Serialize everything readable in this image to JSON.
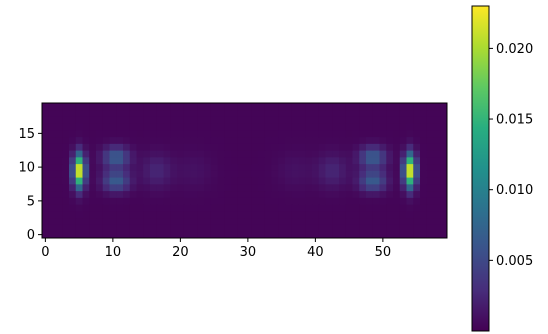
{
  "chart_data": {
    "type": "heatmap",
    "title": "",
    "xlabel": "",
    "ylabel": "",
    "colormap": "viridis",
    "origin": "lower",
    "grid": false,
    "shape": {
      "columns": 60,
      "rows": 20
    },
    "xlim": [
      -0.5,
      59.5
    ],
    "ylim": [
      -0.5,
      19.5
    ],
    "x_ticks": [
      0,
      10,
      20,
      30,
      40,
      50
    ],
    "y_ticks": [
      0,
      5,
      10,
      15
    ],
    "colorbar": {
      "range": [
        0.0,
        0.023
      ],
      "ticks": [
        0.005,
        0.01,
        0.015,
        0.02
      ],
      "tick_labels": [
        "0.005",
        "0.010",
        "0.015",
        "0.020"
      ],
      "position": "right"
    },
    "hotspots": [
      {
        "x": 5,
        "y": 9.5,
        "sx": 0.6,
        "sy": 1.7,
        "value": 0.0215
      },
      {
        "x": 54,
        "y": 9.5,
        "sx": 0.6,
        "sy": 1.7,
        "value": 0.0215
      },
      {
        "x": 10.5,
        "y": 8.0,
        "sx": 1.4,
        "sy": 1.1,
        "value": 0.0065
      },
      {
        "x": 10.5,
        "y": 11.5,
        "sx": 1.4,
        "sy": 1.1,
        "value": 0.0065
      },
      {
        "x": 48.5,
        "y": 8.0,
        "sx": 1.4,
        "sy": 1.1,
        "value": 0.0065
      },
      {
        "x": 48.5,
        "y": 11.5,
        "sx": 1.4,
        "sy": 1.1,
        "value": 0.0065
      },
      {
        "x": 16.5,
        "y": 9.5,
        "sx": 1.6,
        "sy": 1.8,
        "value": 0.0022
      },
      {
        "x": 42.5,
        "y": 9.5,
        "sx": 1.6,
        "sy": 1.8,
        "value": 0.0022
      },
      {
        "x": 22,
        "y": 9.5,
        "sx": 2.0,
        "sy": 2.0,
        "value": 0.0008
      },
      {
        "x": 37,
        "y": 9.5,
        "sx": 2.0,
        "sy": 2.0,
        "value": 0.0008
      }
    ]
  }
}
